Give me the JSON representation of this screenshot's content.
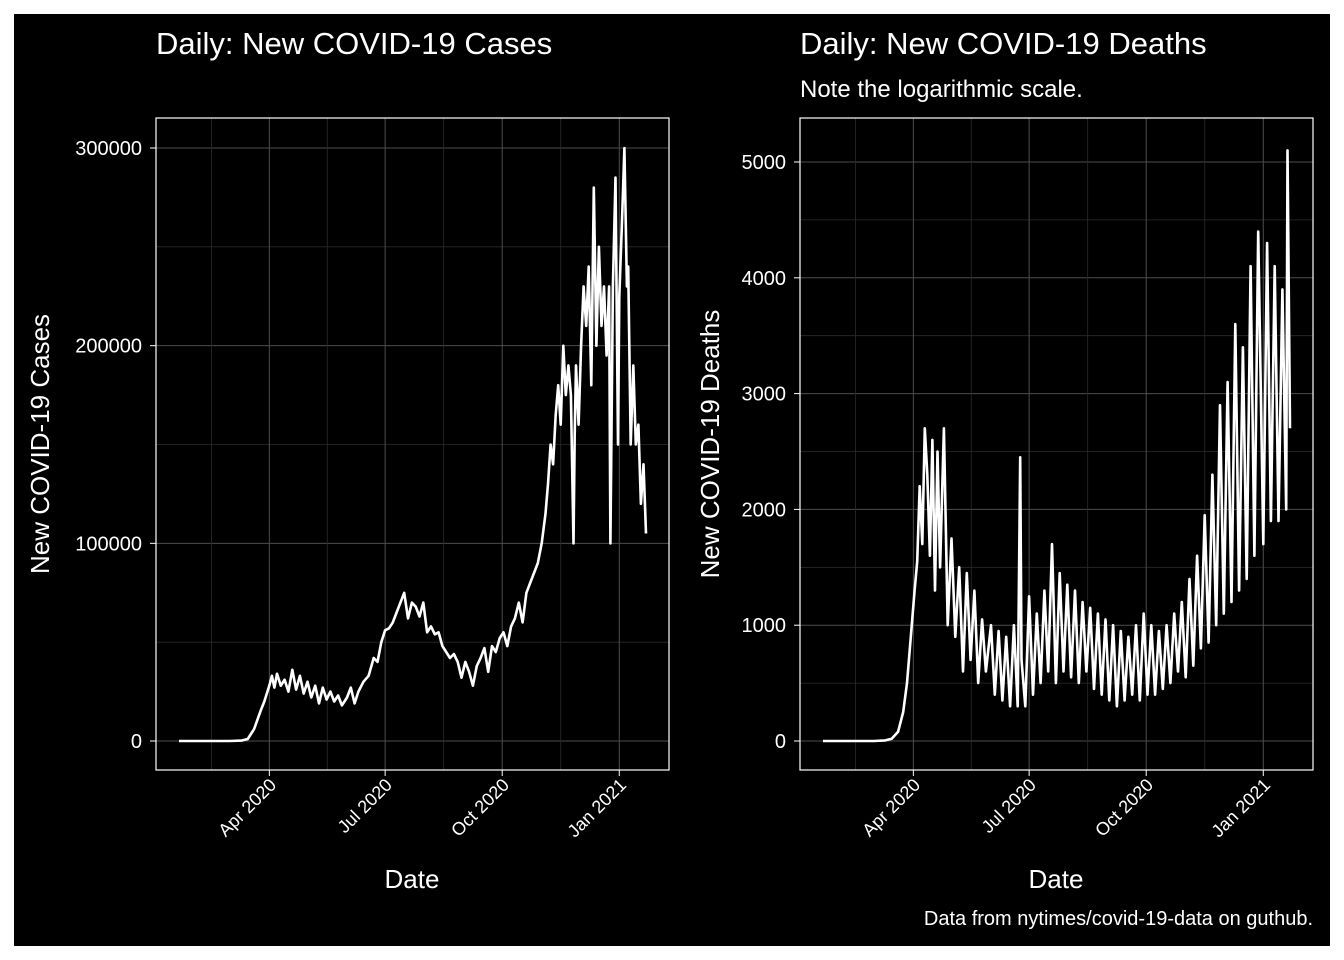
{
  "colors": {
    "background": "#000000",
    "line": "#ffffff",
    "grid": "#4d4d4d",
    "text": "#ffffff"
  },
  "caption": "Data from nytimes/covid-19-data on guthub.",
  "chart_data": [
    {
      "type": "line",
      "title": "Daily: New COVID-19 Cases",
      "subtitle": "",
      "xlabel": "Date",
      "ylabel": "New COVID-19 Cases",
      "xlim": [
        "2020-01-21",
        "2021-01-22"
      ],
      "ylim": [
        0,
        300000
      ],
      "x_ticks": [
        "2020-04-01",
        "2020-07-01",
        "2020-10-01",
        "2021-01-01"
      ],
      "x_tick_labels": [
        "Apr 2020",
        "Jul 2020",
        "Oct 2020",
        "Jan 2021"
      ],
      "y_ticks": [
        0,
        100000,
        200000,
        300000
      ],
      "y_tick_labels": [
        "0",
        "100000",
        "200000",
        "300000"
      ],
      "grid": true,
      "series": [
        {
          "x": [
            "2020-01-21",
            "2020-02-01",
            "2020-02-15",
            "2020-03-01",
            "2020-03-10",
            "2020-03-15",
            "2020-03-20",
            "2020-03-25",
            "2020-03-28",
            "2020-04-01",
            "2020-04-03",
            "2020-04-05",
            "2020-04-07",
            "2020-04-10",
            "2020-04-13",
            "2020-04-16",
            "2020-04-19",
            "2020-04-22",
            "2020-04-25",
            "2020-04-28",
            "2020-05-01",
            "2020-05-04",
            "2020-05-07",
            "2020-05-10",
            "2020-05-13",
            "2020-05-16",
            "2020-05-19",
            "2020-05-22",
            "2020-05-25",
            "2020-05-28",
            "2020-06-01",
            "2020-06-04",
            "2020-06-07",
            "2020-06-10",
            "2020-06-14",
            "2020-06-18",
            "2020-06-22",
            "2020-06-25",
            "2020-06-28",
            "2020-07-01",
            "2020-07-04",
            "2020-07-07",
            "2020-07-10",
            "2020-07-13",
            "2020-07-16",
            "2020-07-19",
            "2020-07-22",
            "2020-07-25",
            "2020-07-28",
            "2020-07-31",
            "2020-08-03",
            "2020-08-06",
            "2020-08-09",
            "2020-08-12",
            "2020-08-15",
            "2020-08-18",
            "2020-08-21",
            "2020-08-24",
            "2020-08-27",
            "2020-08-30",
            "2020-09-02",
            "2020-09-05",
            "2020-09-08",
            "2020-09-11",
            "2020-09-14",
            "2020-09-17",
            "2020-09-20",
            "2020-09-23",
            "2020-09-26",
            "2020-09-29",
            "2020-10-02",
            "2020-10-05",
            "2020-10-08",
            "2020-10-11",
            "2020-10-14",
            "2020-10-17",
            "2020-10-20",
            "2020-10-23",
            "2020-10-26",
            "2020-10-29",
            "2020-11-01",
            "2020-11-04",
            "2020-11-06",
            "2020-11-08",
            "2020-11-10",
            "2020-11-12",
            "2020-11-14",
            "2020-11-16",
            "2020-11-18",
            "2020-11-20",
            "2020-11-22",
            "2020-11-24",
            "2020-11-26",
            "2020-11-27",
            "2020-11-28",
            "2020-11-30",
            "2020-12-02",
            "2020-12-04",
            "2020-12-06",
            "2020-12-08",
            "2020-12-10",
            "2020-12-12",
            "2020-12-14",
            "2020-12-16",
            "2020-12-18",
            "2020-12-20",
            "2020-12-22",
            "2020-12-24",
            "2020-12-25",
            "2020-12-27",
            "2020-12-29",
            "2020-12-31",
            "2021-01-01",
            "2021-01-03",
            "2021-01-05",
            "2021-01-07",
            "2021-01-08",
            "2021-01-10",
            "2021-01-12",
            "2021-01-14",
            "2021-01-16",
            "2021-01-18",
            "2021-01-20",
            "2021-01-22"
          ],
          "y": [
            0,
            0,
            0,
            0,
            200,
            1000,
            6000,
            15000,
            20000,
            28000,
            33000,
            27000,
            34000,
            28000,
            31000,
            25000,
            36000,
            26000,
            33000,
            24000,
            30000,
            22000,
            28000,
            19000,
            27000,
            21000,
            25000,
            20000,
            23000,
            18000,
            22000,
            27000,
            19000,
            25000,
            30000,
            33000,
            42000,
            40000,
            50000,
            56000,
            57000,
            60000,
            65000,
            70000,
            75000,
            62000,
            70000,
            68000,
            63000,
            70000,
            55000,
            58000,
            54000,
            55000,
            48000,
            45000,
            42000,
            44000,
            40000,
            32000,
            40000,
            35000,
            28000,
            38000,
            42000,
            47000,
            35000,
            48000,
            45000,
            52000,
            55000,
            48000,
            58000,
            62000,
            70000,
            60000,
            75000,
            80000,
            85000,
            90000,
            100000,
            115000,
            130000,
            150000,
            140000,
            165000,
            180000,
            160000,
            200000,
            175000,
            190000,
            175000,
            100000,
            155000,
            190000,
            160000,
            200000,
            230000,
            210000,
            240000,
            180000,
            280000,
            200000,
            250000,
            210000,
            230000,
            195000,
            230000,
            100000,
            230000,
            285000,
            150000,
            225000,
            260000,
            300000,
            230000,
            240000,
            150000,
            190000,
            150000,
            160000,
            120000,
            140000,
            105000
          ]
        }
      ]
    },
    {
      "type": "line",
      "title": "Daily: New COVID-19 Deaths",
      "subtitle": "Note the logarithmic scale.",
      "xlabel": "Date",
      "ylabel": "New COVID-19 Deaths",
      "xlim": [
        "2020-01-21",
        "2021-01-22"
      ],
      "ylim": [
        0,
        5000
      ],
      "x_ticks": [
        "2020-04-01",
        "2020-07-01",
        "2020-10-01",
        "2021-01-01"
      ],
      "x_tick_labels": [
        "Apr 2020",
        "Jul 2020",
        "Oct 2020",
        "Jan 2021"
      ],
      "y_ticks": [
        0,
        1000,
        2000,
        3000,
        4000,
        5000
      ],
      "y_tick_labels": [
        "0",
        "1000",
        "2000",
        "3000",
        "4000",
        "5000"
      ],
      "grid": true,
      "series": [
        {
          "x": [
            "2020-01-21",
            "2020-02-10",
            "2020-03-01",
            "2020-03-10",
            "2020-03-15",
            "2020-03-20",
            "2020-03-24",
            "2020-03-27",
            "2020-03-30",
            "2020-04-02",
            "2020-04-04",
            "2020-04-06",
            "2020-04-08",
            "2020-04-10",
            "2020-04-12",
            "2020-04-14",
            "2020-04-16",
            "2020-04-18",
            "2020-04-20",
            "2020-04-22",
            "2020-04-25",
            "2020-04-28",
            "2020-05-01",
            "2020-05-04",
            "2020-05-07",
            "2020-05-10",
            "2020-05-13",
            "2020-05-16",
            "2020-05-19",
            "2020-05-22",
            "2020-05-25",
            "2020-05-28",
            "2020-06-01",
            "2020-06-04",
            "2020-06-07",
            "2020-06-10",
            "2020-06-13",
            "2020-06-16",
            "2020-06-19",
            "2020-06-22",
            "2020-06-24",
            "2020-06-25",
            "2020-06-28",
            "2020-07-01",
            "2020-07-04",
            "2020-07-07",
            "2020-07-10",
            "2020-07-13",
            "2020-07-16",
            "2020-07-19",
            "2020-07-22",
            "2020-07-25",
            "2020-07-28",
            "2020-07-31",
            "2020-08-03",
            "2020-08-06",
            "2020-08-09",
            "2020-08-12",
            "2020-08-15",
            "2020-08-18",
            "2020-08-21",
            "2020-08-24",
            "2020-08-27",
            "2020-08-30",
            "2020-09-02",
            "2020-09-05",
            "2020-09-08",
            "2020-09-11",
            "2020-09-14",
            "2020-09-17",
            "2020-09-20",
            "2020-09-23",
            "2020-09-26",
            "2020-09-29",
            "2020-10-02",
            "2020-10-05",
            "2020-10-08",
            "2020-10-11",
            "2020-10-14",
            "2020-10-17",
            "2020-10-20",
            "2020-10-23",
            "2020-10-26",
            "2020-10-29",
            "2020-11-01",
            "2020-11-04",
            "2020-11-07",
            "2020-11-10",
            "2020-11-13",
            "2020-11-16",
            "2020-11-19",
            "2020-11-22",
            "2020-11-25",
            "2020-11-28",
            "2020-12-01",
            "2020-12-04",
            "2020-12-07",
            "2020-12-10",
            "2020-12-13",
            "2020-12-16",
            "2020-12-19",
            "2020-12-22",
            "2020-12-25",
            "2020-12-28",
            "2021-01-01",
            "2021-01-04",
            "2021-01-07",
            "2021-01-10",
            "2021-01-13",
            "2021-01-16",
            "2021-01-19",
            "2021-01-20",
            "2021-01-22"
          ],
          "y": [
            0,
            0,
            0,
            5,
            20,
            80,
            250,
            500,
            900,
            1300,
            1550,
            2200,
            1700,
            2700,
            2300,
            1600,
            2600,
            1300,
            2500,
            1500,
            2700,
            1000,
            1750,
            900,
            1500,
            600,
            1450,
            700,
            1300,
            500,
            1050,
            600,
            1000,
            400,
            950,
            350,
            900,
            300,
            1000,
            300,
            2450,
            700,
            300,
            1250,
            400,
            1100,
            500,
            1300,
            600,
            1700,
            500,
            1450,
            600,
            1350,
            550,
            1300,
            500,
            1200,
            600,
            1150,
            450,
            1100,
            400,
            1050,
            350,
            1000,
            300,
            950,
            350,
            900,
            400,
            1000,
            350,
            1100,
            400,
            1000,
            400,
            950,
            450,
            1000,
            500,
            1100,
            600,
            1200,
            550,
            1400,
            650,
            1600,
            800,
            1950,
            850,
            2300,
            1000,
            2900,
            1100,
            3100,
            1200,
            3600,
            1300,
            3400,
            1400,
            4100,
            1600,
            4400,
            1700,
            4300,
            1900,
            4100,
            1900,
            3900,
            2000,
            5100,
            2700
          ]
        }
      ]
    }
  ]
}
